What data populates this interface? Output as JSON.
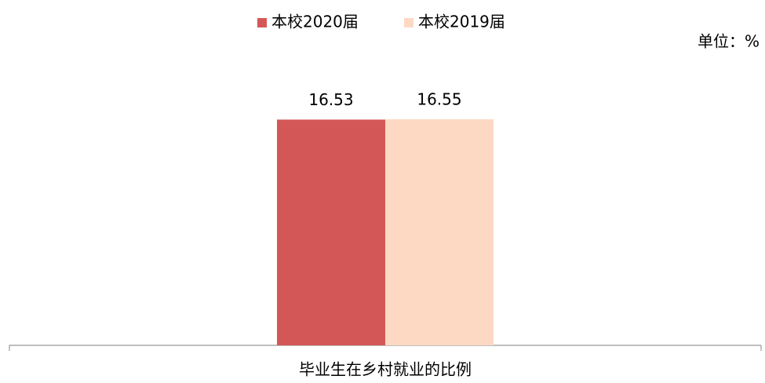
{
  "chart_data": {
    "type": "bar",
    "categories": [
      "毕业生在乡村就业的比例"
    ],
    "series": [
      {
        "name": "本校2020届",
        "color": "#d45757",
        "values": [
          16.53
        ]
      },
      {
        "name": "本校2019届",
        "color": "#fdd9c3",
        "values": [
          16.55
        ]
      }
    ],
    "unit": "单位：%",
    "ylim": [
      0,
      20
    ],
    "legend": "top"
  }
}
